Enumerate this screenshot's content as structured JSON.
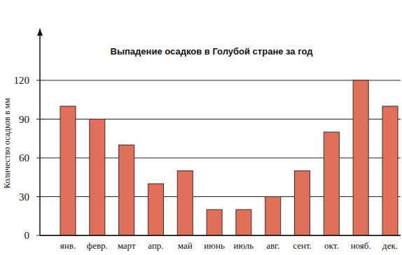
{
  "chart_data": {
    "type": "bar",
    "title": "Выпадение осадков в Голубой стране за год",
    "y_label": "Количество осадков в мм",
    "categories": [
      "янв.",
      "февр.",
      "март",
      "апр.",
      "май",
      "июнь",
      "июль",
      "авг.",
      "сент.",
      "окт.",
      "нояб.",
      "дек."
    ],
    "values": [
      100,
      90,
      70,
      40,
      50,
      20,
      20,
      30,
      50,
      80,
      120,
      100
    ],
    "color": "#e0705a",
    "ylim": [
      0,
      160
    ],
    "yticks": [
      0,
      30,
      60,
      90,
      120
    ],
    "grid": true
  }
}
